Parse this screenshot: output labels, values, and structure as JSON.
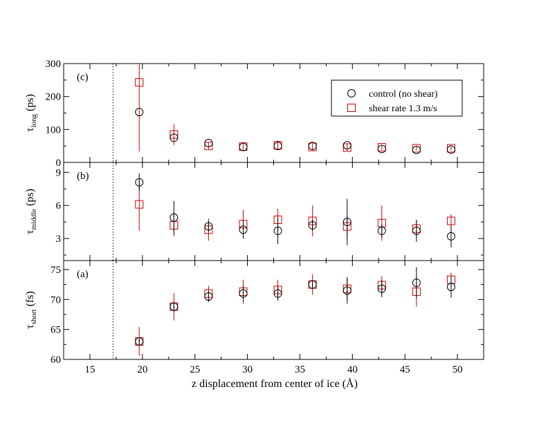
{
  "chart_data": [
    {
      "type": "scatter",
      "panel_label": "(c)",
      "ylabel": {
        "main": "τ",
        "sub": "long",
        "unit": " (ps)"
      },
      "xlim": [
        12.5,
        52.5
      ],
      "ylim": [
        0,
        300
      ],
      "yticks": [
        0,
        100,
        200,
        300
      ],
      "x": [
        19.7,
        23.0,
        26.3,
        29.6,
        32.9,
        36.2,
        39.5,
        42.8,
        46.1,
        49.4
      ],
      "series": [
        {
          "name": "control (no shear)",
          "color": "#000000",
          "marker": "circle",
          "values": [
            153,
            75,
            59,
            47,
            50,
            50,
            52,
            41,
            38,
            39
          ],
          "errors": [
            0,
            0,
            0,
            0,
            0,
            0,
            0,
            0,
            0,
            0
          ]
        },
        {
          "name": "shear rate 1.3 m/s",
          "color": "#cc0000",
          "marker": "square",
          "values": [
            243,
            85,
            50,
            48,
            52,
            47,
            45,
            46,
            43,
            43
          ],
          "errors": [
            210,
            32,
            10,
            10,
            14,
            10,
            10,
            8,
            6,
            7
          ]
        }
      ]
    },
    {
      "type": "scatter",
      "panel_label": "(b)",
      "ylabel": {
        "main": "τ",
        "sub": "middle",
        "unit": " (ps)"
      },
      "xlim": [
        12.5,
        52.5
      ],
      "ylim": [
        1,
        9.9
      ],
      "yticks": [
        3,
        6,
        9
      ],
      "x": [
        19.7,
        23.0,
        26.3,
        29.6,
        32.9,
        36.2,
        39.5,
        42.8,
        46.1,
        49.4
      ],
      "series": [
        {
          "name": "control (no shear)",
          "color": "#000000",
          "marker": "circle",
          "values": [
            8.1,
            4.9,
            4.1,
            3.8,
            3.7,
            4.2,
            4.5,
            3.7,
            3.7,
            3.2
          ],
          "errors": [
            0.8,
            1.5,
            0.5,
            0.8,
            1.2,
            0.5,
            2.1,
            0.6,
            1.0,
            1.0
          ]
        },
        {
          "name": "shear rate 1.3 m/s",
          "color": "#cc0000",
          "marker": "square",
          "values": [
            6.1,
            4.2,
            3.8,
            4.3,
            4.7,
            4.6,
            4.1,
            4.4,
            3.9,
            4.6
          ],
          "errors": [
            2.4,
            1.0,
            1.0,
            1.3,
            1.0,
            1.4,
            1.0,
            1.6,
            0.8,
            0.6
          ]
        }
      ]
    },
    {
      "type": "scatter",
      "panel_label": "(a)",
      "ylabel": {
        "main": "τ",
        "sub": "short",
        "unit": " (fs)"
      },
      "xlabel": "z displacement from center of ice (Å)",
      "xlim": [
        12.5,
        52.5
      ],
      "xticks": [
        15,
        20,
        25,
        30,
        35,
        40,
        45,
        50
      ],
      "ylim": [
        60,
        76.5
      ],
      "yticks": [
        60,
        65,
        70,
        75
      ],
      "x": [
        19.7,
        23.0,
        26.3,
        29.6,
        32.9,
        36.2,
        39.5,
        42.8,
        46.1,
        49.4
      ],
      "series": [
        {
          "name": "control (no shear)",
          "color": "#000000",
          "marker": "circle",
          "values": [
            63.0,
            68.8,
            70.5,
            71.0,
            71.0,
            72.5,
            71.5,
            71.8,
            72.8,
            72.1
          ],
          "errors": [
            0.6,
            0.8,
            0.9,
            1.3,
            1.2,
            0.6,
            2.2,
            1.4,
            2.6,
            1.8
          ]
        },
        {
          "name": "shear rate 1.3 m/s",
          "color": "#cc0000",
          "marker": "square",
          "values": [
            63.0,
            68.8,
            71.0,
            71.3,
            71.6,
            72.5,
            71.8,
            72.4,
            71.3,
            73.3
          ],
          "errors": [
            2.4,
            2.3,
            1.3,
            2.0,
            1.7,
            1.7,
            1.9,
            1.5,
            2.5,
            1.2
          ]
        }
      ]
    }
  ],
  "reference_line_x": 17.2,
  "legend": {
    "placement": "top-right",
    "entries": [
      "control (no shear)",
      "shear rate 1.3 m/s"
    ]
  }
}
